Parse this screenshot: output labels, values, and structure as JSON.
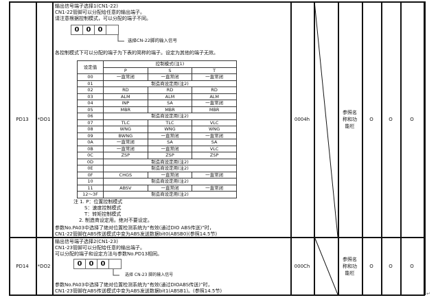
{
  "rows": [
    {
      "param": "PD13",
      "name": "*DO1",
      "initial": "0004h",
      "unit": "参照名称和功能栏",
      "mode_p": "O",
      "mode_s": "O",
      "mode_t": "O",
      "lines": [
        "输出信号端子选择1(CN1-22)",
        "CN1-22管脚可以分配给任意的输出端子。",
        "请注意根据控制模式，可以分配的端子不同。"
      ],
      "digits": [
        "0",
        "0",
        "0",
        ""
      ],
      "select_note": "选择CN-22脚的输入信号",
      "table_intro": "各控制模式下可以分配的端子为下表的简称的端子。设定为其他的端子无效。",
      "notes": [
        "注 1. P：位置控制模式",
        "S：速度控制模式",
        "T：转矩控制模式",
        "2. 制造商设定用。绝对不要设定。"
      ],
      "footer": [
        "参数No.PA03中选择了绝对位置检测系统为“有效(通过DIO ABS传送)”时，",
        "CN1-22管脚在ABS传送模式中变为ABS发送数据bit0(ABSB0)(参照14.5节)"
      ]
    },
    {
      "param": "PD14",
      "name": "*DO2",
      "initial": "000Ch",
      "unit": "参照名称和功能栏",
      "mode_p": "O",
      "mode_s": "O",
      "mode_t": "O",
      "lines": [
        "输出信号端子选择2(CN1-23)",
        "CN1-23管脚可以分配给任意的输出端子。",
        "可以分配的端子和设定方法与参数No.PD13相同。"
      ],
      "digits": [
        "0",
        "0",
        "0",
        ""
      ],
      "select_note": "选择 CN-23 脚的输入信号",
      "footer": [
        "参数No.PA03中选择了绝对位置检测系统为“有效(通过DIOABS传送)”时，",
        "CN1-23管脚在ABS传送模式中变为ABS发送数据bit1(ABSB1)。(参照14.5节)"
      ]
    }
  ],
  "signal_table": {
    "header_value": "设定值",
    "header_mode": "控制模式(注1)",
    "cols": [
      "P",
      "S",
      "T"
    ],
    "rows": [
      {
        "v": "00",
        "c": [
          "一直常闭",
          "一直常闭",
          "一直常闭"
        ]
      },
      {
        "v": "01",
        "span": "制造商设定用(注2)"
      },
      {
        "v": "02",
        "c": [
          "RD",
          "RD",
          "RD"
        ]
      },
      {
        "v": "03",
        "c": [
          "ALM",
          "ALM",
          "ALM"
        ]
      },
      {
        "v": "04",
        "c": [
          "INP",
          "SA",
          "一直常闭"
        ]
      },
      {
        "v": "05",
        "c": [
          "MBR",
          "MBR",
          "MBR"
        ]
      },
      {
        "v": "06",
        "span": "制造商设定用(注2)"
      },
      {
        "v": "07",
        "c": [
          "TLC",
          "TLC",
          "VLC"
        ]
      },
      {
        "v": "08",
        "c": [
          "WNG",
          "WNG",
          "WNG"
        ]
      },
      {
        "v": "09",
        "c": [
          "BWNG",
          "一直常闭",
          "一直常闭"
        ]
      },
      {
        "v": "0A",
        "c": [
          "一直常闭",
          "SA",
          "SA"
        ]
      },
      {
        "v": "0B",
        "c": [
          "一直常闭",
          "一直常闭",
          "VLC"
        ]
      },
      {
        "v": "0C",
        "c": [
          "ZSP",
          "ZSP",
          "ZSP"
        ]
      },
      {
        "v": "0D",
        "span": "制造商设定用(注2)"
      },
      {
        "v": "0E",
        "span": "制造商设定用(注2)"
      },
      {
        "v": "0F",
        "c": [
          "CHGS",
          "一直常闭",
          "一直常闭"
        ]
      },
      {
        "v": "10",
        "span": "制造商设定用(注2)"
      },
      {
        "v": "11",
        "c": [
          "ABSV",
          "一直常闭",
          "一直常闭"
        ]
      },
      {
        "v": "12～3F",
        "span": "制造商设定用(注2)"
      }
    ]
  },
  "return_mark": "↵"
}
